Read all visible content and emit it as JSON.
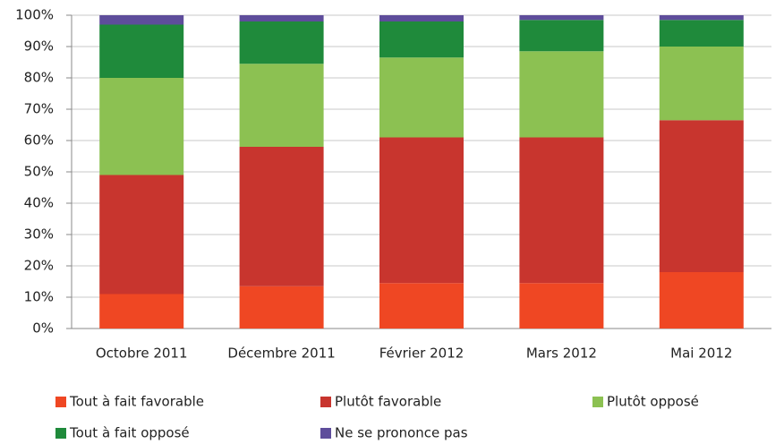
{
  "chart_data": {
    "type": "stacked-bar",
    "categories": [
      "Octobre 2011",
      "Décembre 2011",
      "Février 2012",
      "Mars 2012",
      "Mai 2012"
    ],
    "series": [
      {
        "name": "Tout à fait favorable",
        "color": "#ef4723",
        "values": [
          11,
          13.5,
          14.5,
          14.5,
          18
        ]
      },
      {
        "name": "Plutôt favorable",
        "color": "#c8352e",
        "values": [
          38,
          44.5,
          46.5,
          46.5,
          48.5
        ]
      },
      {
        "name": "Plutôt opposé",
        "color": "#8cc152",
        "values": [
          31,
          26.5,
          25.5,
          27.5,
          23.5
        ]
      },
      {
        "name": "Tout à fait opposé",
        "color": "#1f8a3b",
        "values": [
          17,
          13.5,
          11.5,
          10,
          8.5
        ]
      },
      {
        "name": "Ne se prononce pas",
        "color": "#5e4d9b",
        "values": [
          3,
          2,
          2,
          1.5,
          1.5
        ]
      }
    ],
    "ylim": [
      0,
      100
    ],
    "yticks": [
      {
        "value": 0,
        "label": "0%"
      },
      {
        "value": 10,
        "label": "10%"
      },
      {
        "value": 20,
        "label": "20%"
      },
      {
        "value": 30,
        "label": "30%"
      },
      {
        "value": 40,
        "label": "40%"
      },
      {
        "value": 50,
        "label": "50%"
      },
      {
        "value": 60,
        "label": "60%"
      },
      {
        "value": 70,
        "label": "70%"
      },
      {
        "value": 80,
        "label": "80%"
      },
      {
        "value": 90,
        "label": "90%"
      },
      {
        "value": 100,
        "label": "100%"
      }
    ],
    "grid": true
  }
}
